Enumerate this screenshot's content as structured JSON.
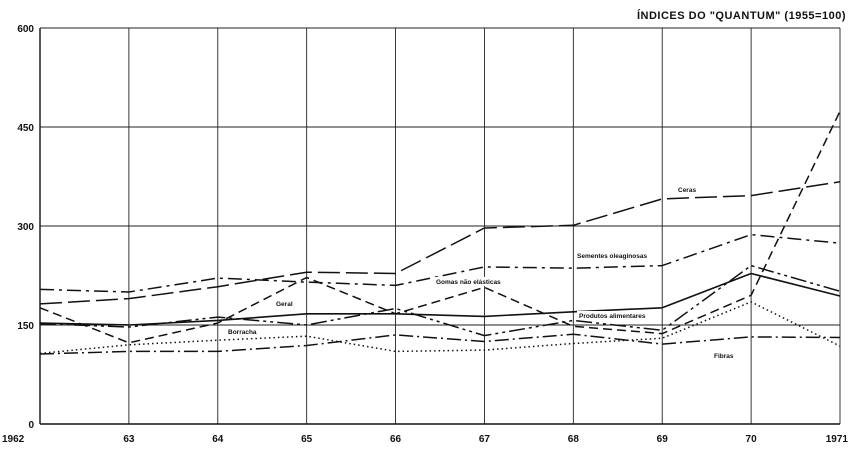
{
  "chart_data": {
    "type": "line",
    "title": "ÍNDICES DO \"QUANTUM\" (1955=100)",
    "xlabel": "",
    "ylabel": "",
    "x": [
      "1962",
      "63",
      "64",
      "65",
      "66",
      "67",
      "68",
      "69",
      "70",
      "1971"
    ],
    "yticks": [
      "0",
      "150",
      "300",
      "450",
      "600"
    ],
    "ylim": [
      0,
      600
    ],
    "grid": true,
    "series": [
      {
        "name": "Ceras",
        "dash": "22,6",
        "values": [
          182,
          190,
          208,
          230,
          228,
          297,
          301,
          341,
          346,
          367
        ]
      },
      {
        "name": "Sementes oleaginosas",
        "dash": "14,5,3,5",
        "values": [
          204,
          200,
          221,
          215,
          210,
          238,
          236,
          240,
          287,
          274
        ]
      },
      {
        "name": "Gomas não elásticas",
        "dash": "9,5",
        "values": [
          176,
          123,
          153,
          222,
          167,
          207,
          148,
          137,
          195,
          474
        ]
      },
      {
        "name": "Geral",
        "dash": "",
        "values": [
          153,
          150,
          157,
          167,
          167,
          163,
          170,
          176,
          228,
          194
        ]
      },
      {
        "name": "Produtos alimentares",
        "dash": "16,4,3,4,3,4",
        "values": [
          152,
          147,
          162,
          150,
          175,
          134,
          157,
          142,
          240,
          201
        ]
      },
      {
        "name": "Borracha",
        "dash": "1.5,3",
        "values": [
          107,
          120,
          127,
          133,
          110,
          112,
          122,
          130,
          185,
          118
        ]
      },
      {
        "name": "Fibras",
        "dash": "14,4,2,4",
        "values": [
          106,
          110,
          110,
          119,
          135,
          125,
          136,
          121,
          132,
          131
        ]
      }
    ],
    "series_labels": [
      {
        "name": "Ceras",
        "text": "Ceras"
      },
      {
        "name": "Sementes oleaginosas",
        "text": "Sementes oleaginosas"
      },
      {
        "name": "Gomas não elásticas",
        "text": "Gomas não elásticas"
      },
      {
        "name": "Geral",
        "text": "Geral"
      },
      {
        "name": "Produtos alimentares",
        "text": "Produtos alimentares"
      },
      {
        "name": "Borracha",
        "text": "Borracha"
      },
      {
        "name": "Fibras",
        "text": "Fibras"
      }
    ]
  }
}
